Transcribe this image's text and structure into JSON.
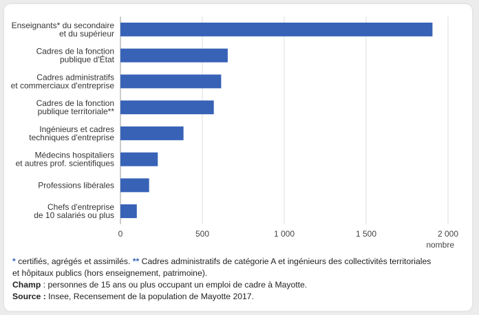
{
  "chart_data": {
    "type": "bar",
    "orientation": "horizontal",
    "categories": [
      [
        "Enseignants* du secondaire",
        "et du supérieur"
      ],
      [
        "Cadres de la fonction",
        "publique d'État"
      ],
      [
        "Cadres administratifs",
        "et commerciaux d'entreprise"
      ],
      [
        "Cadres de la fonction",
        "publique territoriale**"
      ],
      [
        "Ingénieurs et cadres",
        "techniques d'entreprise"
      ],
      [
        "Médecins hospitaliers",
        "et autres prof. scientifiques"
      ],
      [
        "Professions libérales"
      ],
      [
        "Chefs d'entreprise",
        "de 10 salariés ou plus"
      ]
    ],
    "values": [
      1905,
      655,
      615,
      570,
      385,
      228,
      175,
      100
    ],
    "xlim": [
      0,
      2000
    ],
    "xticks": [
      0,
      500,
      1000,
      1500,
      2000
    ],
    "xtick_labels": [
      "0",
      "500",
      "1 000",
      "1 500",
      "2 000"
    ],
    "xlabel": "nombre",
    "bar_color": "#3762b6",
    "grid": "vertical"
  },
  "notes": {
    "star1": "*",
    "line1a": " certifiés, agrégés et assimilés. ",
    "star2": "**",
    "line1b": " Cadres administratifs de catégorie A et ingénieurs des collectivités territoriales",
    "line2": "et hôpitaux publics (hors enseignement, patrimoine).",
    "champ_label": "Champ",
    "champ_text": " : personnes de 15 ans ou plus occupant un emploi de cadre à Mayotte.",
    "source_label": "Source :",
    "source_text": " Insee, Recensement de la population de Mayotte 2017."
  }
}
